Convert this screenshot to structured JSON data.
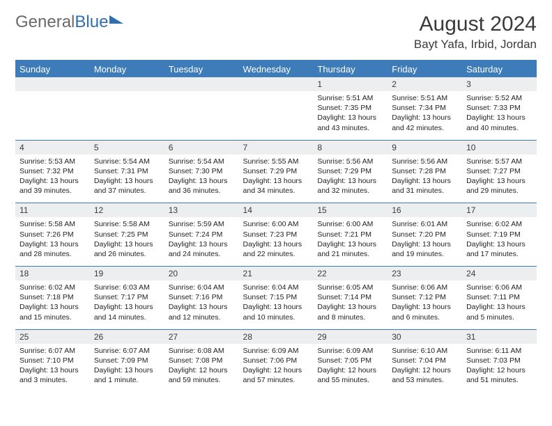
{
  "logo": {
    "text1": "General",
    "text2": "Blue"
  },
  "title": "August 2024",
  "location": "Bayt Yafa, Irbid, Jordan",
  "colors": {
    "header_bg": "#3d7cb8",
    "header_text": "#ffffff",
    "daynum_bg": "#eceef0",
    "border": "#3d7cb8",
    "body_text": "#222222",
    "logo_gray": "#6a6a6a",
    "logo_blue": "#2f6fb0"
  },
  "day_names": [
    "Sunday",
    "Monday",
    "Tuesday",
    "Wednesday",
    "Thursday",
    "Friday",
    "Saturday"
  ],
  "weeks": [
    {
      "nums": [
        "",
        "",
        "",
        "",
        "1",
        "2",
        "3"
      ],
      "cells": [
        null,
        null,
        null,
        null,
        {
          "sunrise": "Sunrise: 5:51 AM",
          "sunset": "Sunset: 7:35 PM",
          "day1": "Daylight: 13 hours",
          "day2": "and 43 minutes."
        },
        {
          "sunrise": "Sunrise: 5:51 AM",
          "sunset": "Sunset: 7:34 PM",
          "day1": "Daylight: 13 hours",
          "day2": "and 42 minutes."
        },
        {
          "sunrise": "Sunrise: 5:52 AM",
          "sunset": "Sunset: 7:33 PM",
          "day1": "Daylight: 13 hours",
          "day2": "and 40 minutes."
        }
      ]
    },
    {
      "nums": [
        "4",
        "5",
        "6",
        "7",
        "8",
        "9",
        "10"
      ],
      "cells": [
        {
          "sunrise": "Sunrise: 5:53 AM",
          "sunset": "Sunset: 7:32 PM",
          "day1": "Daylight: 13 hours",
          "day2": "and 39 minutes."
        },
        {
          "sunrise": "Sunrise: 5:54 AM",
          "sunset": "Sunset: 7:31 PM",
          "day1": "Daylight: 13 hours",
          "day2": "and 37 minutes."
        },
        {
          "sunrise": "Sunrise: 5:54 AM",
          "sunset": "Sunset: 7:30 PM",
          "day1": "Daylight: 13 hours",
          "day2": "and 36 minutes."
        },
        {
          "sunrise": "Sunrise: 5:55 AM",
          "sunset": "Sunset: 7:29 PM",
          "day1": "Daylight: 13 hours",
          "day2": "and 34 minutes."
        },
        {
          "sunrise": "Sunrise: 5:56 AM",
          "sunset": "Sunset: 7:29 PM",
          "day1": "Daylight: 13 hours",
          "day2": "and 32 minutes."
        },
        {
          "sunrise": "Sunrise: 5:56 AM",
          "sunset": "Sunset: 7:28 PM",
          "day1": "Daylight: 13 hours",
          "day2": "and 31 minutes."
        },
        {
          "sunrise": "Sunrise: 5:57 AM",
          "sunset": "Sunset: 7:27 PM",
          "day1": "Daylight: 13 hours",
          "day2": "and 29 minutes."
        }
      ]
    },
    {
      "nums": [
        "11",
        "12",
        "13",
        "14",
        "15",
        "16",
        "17"
      ],
      "cells": [
        {
          "sunrise": "Sunrise: 5:58 AM",
          "sunset": "Sunset: 7:26 PM",
          "day1": "Daylight: 13 hours",
          "day2": "and 28 minutes."
        },
        {
          "sunrise": "Sunrise: 5:58 AM",
          "sunset": "Sunset: 7:25 PM",
          "day1": "Daylight: 13 hours",
          "day2": "and 26 minutes."
        },
        {
          "sunrise": "Sunrise: 5:59 AM",
          "sunset": "Sunset: 7:24 PM",
          "day1": "Daylight: 13 hours",
          "day2": "and 24 minutes."
        },
        {
          "sunrise": "Sunrise: 6:00 AM",
          "sunset": "Sunset: 7:23 PM",
          "day1": "Daylight: 13 hours",
          "day2": "and 22 minutes."
        },
        {
          "sunrise": "Sunrise: 6:00 AM",
          "sunset": "Sunset: 7:21 PM",
          "day1": "Daylight: 13 hours",
          "day2": "and 21 minutes."
        },
        {
          "sunrise": "Sunrise: 6:01 AM",
          "sunset": "Sunset: 7:20 PM",
          "day1": "Daylight: 13 hours",
          "day2": "and 19 minutes."
        },
        {
          "sunrise": "Sunrise: 6:02 AM",
          "sunset": "Sunset: 7:19 PM",
          "day1": "Daylight: 13 hours",
          "day2": "and 17 minutes."
        }
      ]
    },
    {
      "nums": [
        "18",
        "19",
        "20",
        "21",
        "22",
        "23",
        "24"
      ],
      "cells": [
        {
          "sunrise": "Sunrise: 6:02 AM",
          "sunset": "Sunset: 7:18 PM",
          "day1": "Daylight: 13 hours",
          "day2": "and 15 minutes."
        },
        {
          "sunrise": "Sunrise: 6:03 AM",
          "sunset": "Sunset: 7:17 PM",
          "day1": "Daylight: 13 hours",
          "day2": "and 14 minutes."
        },
        {
          "sunrise": "Sunrise: 6:04 AM",
          "sunset": "Sunset: 7:16 PM",
          "day1": "Daylight: 13 hours",
          "day2": "and 12 minutes."
        },
        {
          "sunrise": "Sunrise: 6:04 AM",
          "sunset": "Sunset: 7:15 PM",
          "day1": "Daylight: 13 hours",
          "day2": "and 10 minutes."
        },
        {
          "sunrise": "Sunrise: 6:05 AM",
          "sunset": "Sunset: 7:14 PM",
          "day1": "Daylight: 13 hours",
          "day2": "and 8 minutes."
        },
        {
          "sunrise": "Sunrise: 6:06 AM",
          "sunset": "Sunset: 7:12 PM",
          "day1": "Daylight: 13 hours",
          "day2": "and 6 minutes."
        },
        {
          "sunrise": "Sunrise: 6:06 AM",
          "sunset": "Sunset: 7:11 PM",
          "day1": "Daylight: 13 hours",
          "day2": "and 5 minutes."
        }
      ]
    },
    {
      "nums": [
        "25",
        "26",
        "27",
        "28",
        "29",
        "30",
        "31"
      ],
      "cells": [
        {
          "sunrise": "Sunrise: 6:07 AM",
          "sunset": "Sunset: 7:10 PM",
          "day1": "Daylight: 13 hours",
          "day2": "and 3 minutes."
        },
        {
          "sunrise": "Sunrise: 6:07 AM",
          "sunset": "Sunset: 7:09 PM",
          "day1": "Daylight: 13 hours",
          "day2": "and 1 minute."
        },
        {
          "sunrise": "Sunrise: 6:08 AM",
          "sunset": "Sunset: 7:08 PM",
          "day1": "Daylight: 12 hours",
          "day2": "and 59 minutes."
        },
        {
          "sunrise": "Sunrise: 6:09 AM",
          "sunset": "Sunset: 7:06 PM",
          "day1": "Daylight: 12 hours",
          "day2": "and 57 minutes."
        },
        {
          "sunrise": "Sunrise: 6:09 AM",
          "sunset": "Sunset: 7:05 PM",
          "day1": "Daylight: 12 hours",
          "day2": "and 55 minutes."
        },
        {
          "sunrise": "Sunrise: 6:10 AM",
          "sunset": "Sunset: 7:04 PM",
          "day1": "Daylight: 12 hours",
          "day2": "and 53 minutes."
        },
        {
          "sunrise": "Sunrise: 6:11 AM",
          "sunset": "Sunset: 7:03 PM",
          "day1": "Daylight: 12 hours",
          "day2": "and 51 minutes."
        }
      ]
    }
  ]
}
